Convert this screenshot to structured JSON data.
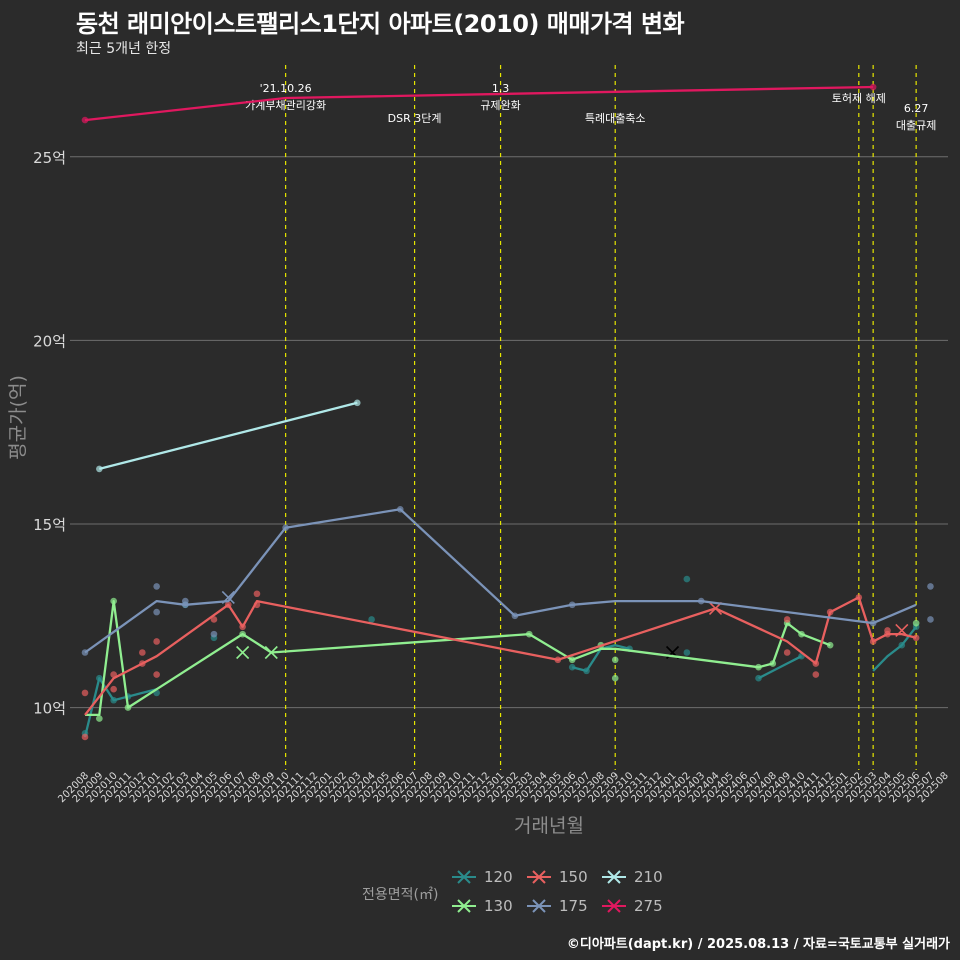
{
  "header": {
    "title": "동천 래미안이스트팰리스1단지 아파트(2010) 매매가격 변화",
    "subtitle": "최근 5개년 한정"
  },
  "caption": "©디아파트(dapt.kr) / 2025.08.13 / 자료=국토교통부 실거래가",
  "colors": {
    "background": "#2b2b2b",
    "grid": "#6e6e6e",
    "event_line": "#e6e600",
    "s120": "#2a8b8b",
    "s130": "#90ee90",
    "s150": "#e8605f",
    "s175": "#7b93b8",
    "s210": "#b0e8e8",
    "s275": "#e0185f"
  },
  "legend": {
    "title": "전용면적(㎡)",
    "items": [
      {
        "label": "120",
        "color": "#2a8b8b"
      },
      {
        "label": "130",
        "color": "#90ee90"
      },
      {
        "label": "150",
        "color": "#e8605f"
      },
      {
        "label": "175",
        "color": "#7b93b8"
      },
      {
        "label": "210",
        "color": "#b0e8e8"
      },
      {
        "label": "275",
        "color": "#e0185f"
      }
    ]
  },
  "chart_data": {
    "type": "line",
    "title": "동천 래미안이스트팰리스1단지 아파트(2010) 매매가격 변화",
    "xlabel": "거래년월",
    "ylabel": "평균가(억)",
    "ylim": [
      8.3,
      27.5
    ],
    "yticks": [
      10,
      15,
      20,
      25
    ],
    "ytick_labels": [
      "10억",
      "15억",
      "20억",
      "25억"
    ],
    "x_start": "202008",
    "xticks": [
      "202008",
      "202009",
      "202010",
      "202011",
      "202012",
      "202101",
      "202102",
      "202103",
      "202104",
      "202105",
      "202106",
      "202107",
      "202108",
      "202109",
      "202110",
      "202111",
      "202112",
      "202201",
      "202202",
      "202203",
      "202204",
      "202205",
      "202206",
      "202207",
      "202208",
      "202209",
      "202210",
      "202211",
      "202212",
      "202301",
      "202302",
      "202303",
      "202304",
      "202305",
      "202306",
      "202307",
      "202308",
      "202309",
      "202310",
      "202311",
      "202312",
      "202401",
      "202402",
      "202403",
      "202404",
      "202405",
      "202406",
      "202407",
      "202408",
      "202409",
      "202410",
      "202411",
      "202412",
      "202501",
      "202502",
      "202503",
      "202504",
      "202505",
      "202506",
      "202507",
      "202508"
    ],
    "events": [
      {
        "x": 14.0,
        "label": "'21.10.26\n가계부채관리강화",
        "label_y": "high"
      },
      {
        "x": 23.0,
        "label": "DSR 3단계",
        "label_y": "low"
      },
      {
        "x": 29.0,
        "label": "1.3\n규제완화",
        "label_y": "high"
      },
      {
        "x": 37.0,
        "label": "특례대출축소",
        "label_y": "low"
      },
      {
        "x": 54.0,
        "label": "토허제 해제",
        "label_y": "mid"
      },
      {
        "x": 55.0,
        "label": "",
        "label_y": "none"
      },
      {
        "x": 58.0,
        "label": "6.27\n대출규제",
        "label_y": "mid2"
      }
    ],
    "series": [
      {
        "name": "120",
        "color": "#2a8b8b",
        "line": [
          [
            0,
            9.2
          ],
          [
            1,
            10.8
          ],
          [
            2,
            10.2
          ],
          [
            3,
            10.3
          ],
          [
            4,
            10.4
          ],
          [
            5,
            10.5
          ]
        ],
        "line2": [
          [
            34,
            11.1
          ],
          [
            35,
            11.0
          ],
          [
            36,
            11.6
          ],
          [
            37,
            11.7
          ],
          [
            38,
            11.6
          ]
        ],
        "line3": [
          [
            47,
            10.8
          ],
          [
            48,
            11.0
          ],
          [
            49,
            11.2
          ],
          [
            50,
            11.4
          ]
        ],
        "line4": [
          [
            55,
            11.0
          ],
          [
            56,
            11.4
          ],
          [
            57,
            11.7
          ],
          [
            58,
            12.2
          ]
        ],
        "points": [
          [
            0,
            9.3
          ],
          [
            1,
            10.8
          ],
          [
            2,
            10.2
          ],
          [
            3,
            10.3
          ],
          [
            5,
            10.4
          ],
          [
            7,
            12.8
          ],
          [
            9,
            11.9
          ],
          [
            20,
            12.4
          ],
          [
            34,
            11.1
          ],
          [
            35,
            11.0
          ],
          [
            38,
            11.6
          ],
          [
            42,
            13.5
          ],
          [
            42,
            11.5
          ],
          [
            47,
            10.8
          ],
          [
            50,
            11.4
          ],
          [
            57,
            11.7
          ],
          [
            58,
            12.2
          ]
        ],
        "crosses": [
          [
            41,
            11.5
          ]
        ]
      },
      {
        "name": "130",
        "color": "#90ee90",
        "line": [
          [
            0,
            9.8
          ],
          [
            1,
            9.8
          ],
          [
            2,
            12.9
          ],
          [
            3,
            10.0
          ],
          [
            5,
            10.5
          ],
          [
            11,
            12.0
          ],
          [
            13,
            11.5
          ],
          [
            31,
            12.0
          ],
          [
            34,
            11.3
          ],
          [
            36,
            11.6
          ],
          [
            37,
            11.6
          ],
          [
            47,
            11.1
          ],
          [
            48,
            11.2
          ],
          [
            49,
            12.3
          ],
          [
            50,
            12.0
          ],
          [
            52,
            11.7
          ]
        ],
        "points": [
          [
            1,
            9.7
          ],
          [
            2,
            12.9
          ],
          [
            3,
            10.0
          ],
          [
            11,
            12.0
          ],
          [
            31,
            12.0
          ],
          [
            34,
            11.3
          ],
          [
            36,
            11.7
          ],
          [
            37,
            11.3
          ],
          [
            37,
            10.8
          ],
          [
            47,
            11.1
          ],
          [
            48,
            11.2
          ],
          [
            49,
            12.3
          ],
          [
            50,
            12.0
          ],
          [
            52,
            11.7
          ],
          [
            58,
            12.3
          ]
        ],
        "crosses": [
          [
            11,
            11.5
          ],
          [
            13,
            11.5
          ]
        ]
      },
      {
        "name": "150",
        "color": "#e8605f",
        "line": [
          [
            0,
            9.8
          ],
          [
            2,
            10.8
          ],
          [
            5,
            11.4
          ],
          [
            10,
            12.8
          ],
          [
            11,
            12.2
          ],
          [
            12,
            12.9
          ],
          [
            33,
            11.3
          ],
          [
            44,
            12.7
          ],
          [
            49,
            11.8
          ],
          [
            51,
            11.2
          ],
          [
            52,
            12.6
          ],
          [
            54,
            13.0
          ],
          [
            55,
            11.8
          ],
          [
            56,
            12.0
          ],
          [
            57,
            12.0
          ],
          [
            58,
            11.9
          ]
        ],
        "points": [
          [
            0,
            10.4
          ],
          [
            0,
            9.2
          ],
          [
            2,
            10.5
          ],
          [
            2,
            10.9
          ],
          [
            4,
            11.2
          ],
          [
            4,
            11.5
          ],
          [
            5,
            11.8
          ],
          [
            5,
            10.9
          ],
          [
            9,
            12.4
          ],
          [
            10,
            12.8
          ],
          [
            11,
            12.2
          ],
          [
            12,
            13.1
          ],
          [
            12,
            12.8
          ],
          [
            33,
            11.3
          ],
          [
            49,
            11.5
          ],
          [
            49,
            12.4
          ],
          [
            51,
            10.9
          ],
          [
            51,
            11.2
          ],
          [
            52,
            12.6
          ],
          [
            54,
            13.0
          ],
          [
            55,
            11.8
          ],
          [
            56,
            12.0
          ],
          [
            56,
            12.1
          ],
          [
            58,
            11.9
          ]
        ],
        "crosses": [
          [
            44,
            12.7
          ],
          [
            57,
            12.1
          ]
        ]
      },
      {
        "name": "175",
        "color": "#7b93b8",
        "line": [
          [
            0,
            11.5
          ],
          [
            5,
            12.9
          ],
          [
            7,
            12.8
          ],
          [
            10,
            12.9
          ],
          [
            14,
            14.9
          ],
          [
            22,
            15.4
          ],
          [
            30,
            12.5
          ],
          [
            34,
            12.8
          ],
          [
            37,
            12.9
          ],
          [
            43,
            12.9
          ],
          [
            55,
            12.3
          ],
          [
            58,
            12.8
          ]
        ],
        "points": [
          [
            0,
            11.5
          ],
          [
            5,
            13.3
          ],
          [
            5,
            12.6
          ],
          [
            7,
            12.8
          ],
          [
            7,
            12.9
          ],
          [
            9,
            12.0
          ],
          [
            14,
            14.9
          ],
          [
            22,
            15.4
          ],
          [
            30,
            12.5
          ],
          [
            34,
            12.8
          ],
          [
            43,
            12.9
          ],
          [
            55,
            12.3
          ],
          [
            59,
            13.3
          ],
          [
            59,
            12.4
          ]
        ],
        "crosses": [
          [
            10,
            13.0
          ]
        ]
      },
      {
        "name": "210",
        "color": "#b0e8e8",
        "line": [
          [
            1,
            16.5
          ],
          [
            19,
            18.3
          ]
        ],
        "points": [
          [
            1,
            16.5
          ],
          [
            19,
            18.3
          ]
        ],
        "crosses": []
      },
      {
        "name": "275",
        "color": "#e0185f",
        "line": [
          [
            0,
            26.0
          ],
          [
            14,
            26.6
          ],
          [
            55,
            26.9
          ]
        ],
        "points": [
          [
            0,
            26.0
          ],
          [
            55,
            26.9
          ]
        ],
        "crosses": []
      }
    ]
  }
}
